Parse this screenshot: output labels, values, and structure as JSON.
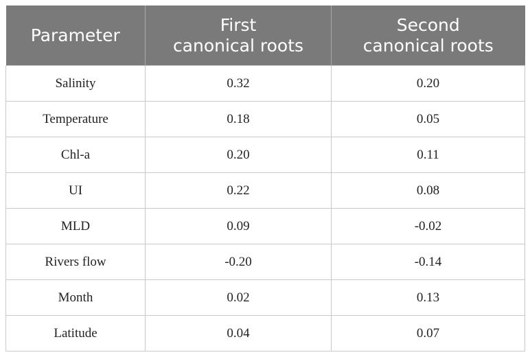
{
  "table": {
    "headers": [
      {
        "lines": [
          "Parameter"
        ]
      },
      {
        "lines": [
          "First",
          "canonical roots"
        ]
      },
      {
        "lines": [
          "Second",
          "canonical roots"
        ]
      }
    ],
    "rows": [
      {
        "parameter": "Salinity",
        "first": "0.32",
        "second": "0.20"
      },
      {
        "parameter": "Temperature",
        "first": "0.18",
        "second": "0.05"
      },
      {
        "parameter": "Chl-a",
        "first": "0.20",
        "second": "0.11"
      },
      {
        "parameter": "UI",
        "first": "0.22",
        "second": "0.08"
      },
      {
        "parameter": "MLD",
        "first": "0.09",
        "second": "-0.02"
      },
      {
        "parameter": "Rivers flow",
        "first": "-0.20",
        "second": "-0.14"
      },
      {
        "parameter": "Month",
        "first": "0.02",
        "second": "0.13"
      },
      {
        "parameter": "Latitude",
        "first": "0.04",
        "second": "0.07"
      }
    ]
  }
}
